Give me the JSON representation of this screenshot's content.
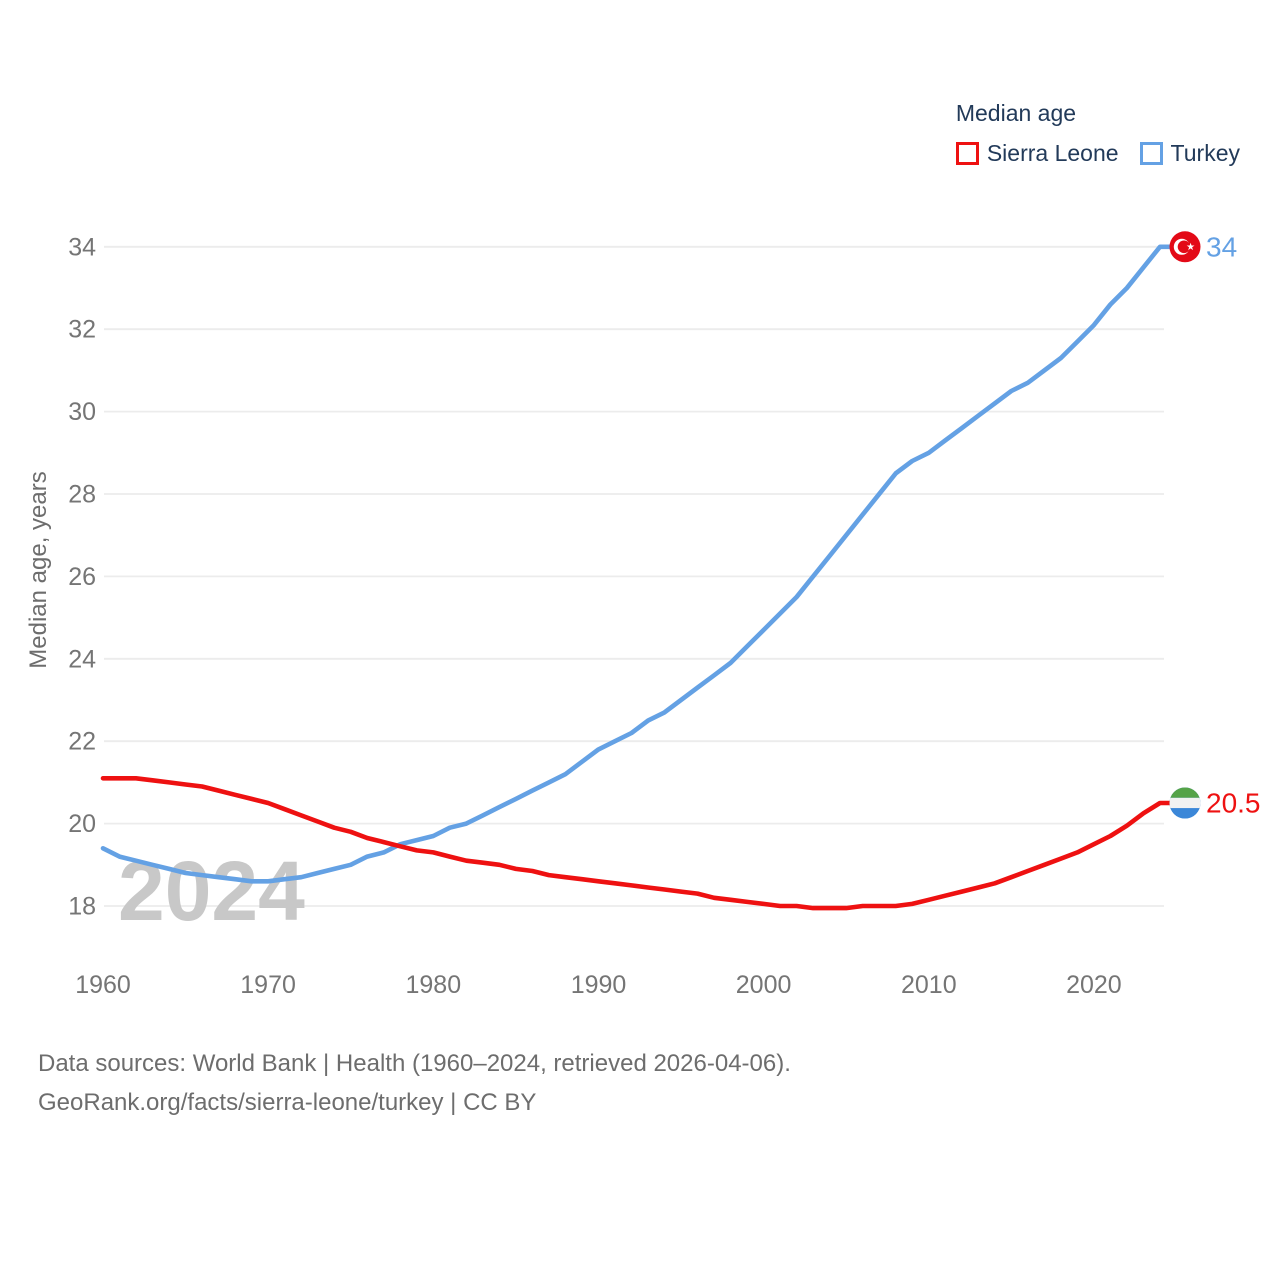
{
  "legend": {
    "title": "Median age",
    "items": [
      {
        "label": "Sierra Leone",
        "color": "#ee1111"
      },
      {
        "label": "Turkey",
        "color": "#64a1e4"
      }
    ]
  },
  "watermark": "2024",
  "footer": {
    "line1": "Data sources: World Bank | Health (1960–2024, retrieved 2026-04-06).",
    "line2": "GeoRank.org/facts/sierra-leone/turkey | CC BY"
  },
  "chart_data": {
    "type": "line",
    "title": "Median age",
    "ylabel": "Median age, years",
    "xlabel": "",
    "xlim": [
      1960,
      2024
    ],
    "ylim": [
      18,
      34
    ],
    "grid": "horizontal-only",
    "legend_position": "top-right",
    "xticks": [
      1960,
      1970,
      1980,
      1990,
      2000,
      2010,
      2020
    ],
    "yticks": [
      18,
      20,
      22,
      24,
      26,
      28,
      30,
      32,
      34
    ],
    "x": [
      1960,
      1961,
      1962,
      1963,
      1964,
      1965,
      1966,
      1967,
      1968,
      1969,
      1970,
      1971,
      1972,
      1973,
      1974,
      1975,
      1976,
      1977,
      1978,
      1979,
      1980,
      1981,
      1982,
      1983,
      1984,
      1985,
      1986,
      1987,
      1988,
      1989,
      1990,
      1991,
      1992,
      1993,
      1994,
      1995,
      1996,
      1997,
      1998,
      1999,
      2000,
      2001,
      2002,
      2003,
      2004,
      2005,
      2006,
      2007,
      2008,
      2009,
      2010,
      2011,
      2012,
      2013,
      2014,
      2015,
      2016,
      2017,
      2018,
      2019,
      2020,
      2021,
      2022,
      2023,
      2024
    ],
    "series": [
      {
        "name": "Sierra Leone",
        "color": "#ee1111",
        "flag": "sierra-leone",
        "end_label": "20.5",
        "end_value": 20.5,
        "values": [
          21.1,
          21.1,
          21.1,
          21.05,
          21.0,
          20.95,
          20.9,
          20.8,
          20.7,
          20.6,
          20.5,
          20.35,
          20.2,
          20.05,
          19.9,
          19.8,
          19.65,
          19.55,
          19.45,
          19.35,
          19.3,
          19.2,
          19.1,
          19.05,
          19.0,
          18.9,
          18.85,
          18.75,
          18.7,
          18.65,
          18.6,
          18.55,
          18.5,
          18.45,
          18.4,
          18.35,
          18.3,
          18.2,
          18.15,
          18.1,
          18.05,
          18.0,
          18.0,
          17.95,
          17.95,
          17.95,
          18.0,
          18.0,
          18.0,
          18.05,
          18.15,
          18.25,
          18.35,
          18.45,
          18.55,
          18.7,
          18.85,
          19.0,
          19.15,
          19.3,
          19.5,
          19.7,
          19.95,
          20.25,
          20.5
        ]
      },
      {
        "name": "Turkey",
        "color": "#64a1e4",
        "flag": "turkey",
        "end_label": "34",
        "end_value": 34,
        "values": [
          19.4,
          19.2,
          19.1,
          19.0,
          18.9,
          18.8,
          18.75,
          18.7,
          18.65,
          18.6,
          18.6,
          18.65,
          18.7,
          18.8,
          18.9,
          19.0,
          19.2,
          19.3,
          19.5,
          19.6,
          19.7,
          19.9,
          20.0,
          20.2,
          20.4,
          20.6,
          20.8,
          21.0,
          21.2,
          21.5,
          21.8,
          22.0,
          22.2,
          22.5,
          22.7,
          23.0,
          23.3,
          23.6,
          23.9,
          24.3,
          24.7,
          25.1,
          25.5,
          26.0,
          26.5,
          27.0,
          27.5,
          28.0,
          28.5,
          28.8,
          29.0,
          29.3,
          29.6,
          29.9,
          30.2,
          30.5,
          30.7,
          31.0,
          31.3,
          31.7,
          32.1,
          32.6,
          33.0,
          33.5,
          34.0
        ]
      }
    ],
    "flag_colors": {
      "turkey_red": "#e30a17",
      "sierra_leone_green": "#55a348",
      "sierra_leone_white": "#f2f2f2",
      "sierra_leone_blue": "#3b87d8"
    },
    "axis_text_color": "#757575",
    "gridline_color": "#ececec",
    "watermark_color": "#c8c8c8"
  }
}
